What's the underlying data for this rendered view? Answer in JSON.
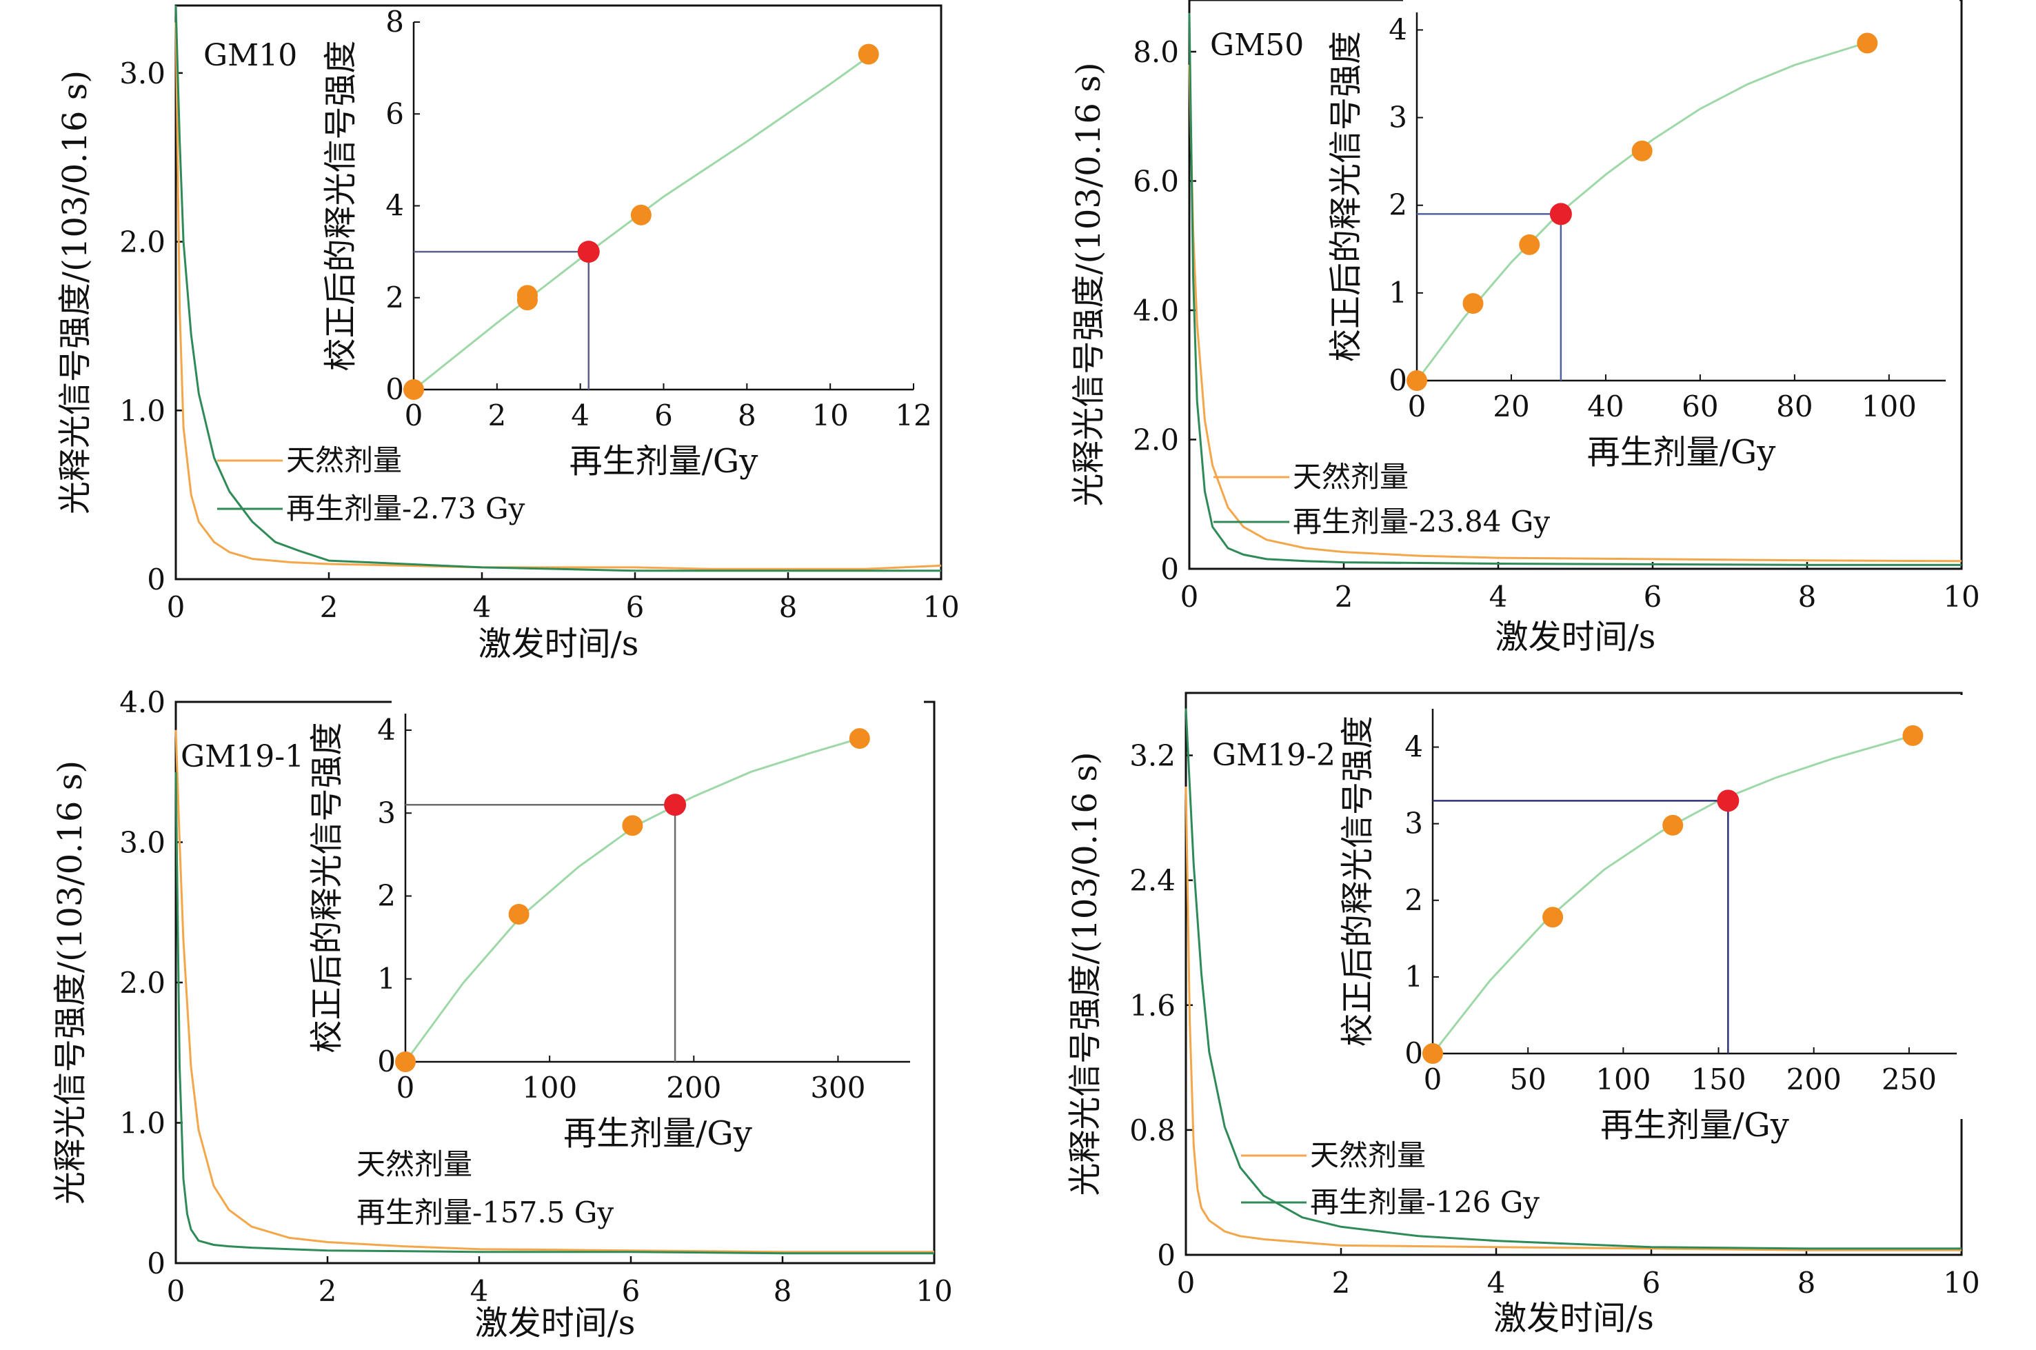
{
  "colors": {
    "natural": "#f4a64a",
    "regen_main": "#2e8b57",
    "fit_curve": "#9fd8a8",
    "point": "#f28c1e",
    "de_point": "#e8202a",
    "guide_gm10": "#5e5e8c",
    "guide_gm50": "#5060a0",
    "guide_gm19_1": "#6b6b6b",
    "guide_gm19_2": "#30307a",
    "axis": "#111111"
  },
  "chart_data": [
    {
      "type": "line",
      "panel": "GM10",
      "label": "GM10",
      "xlabel": "激发时间/s",
      "ylabel": "光释光信号强度/(103/0.16 s)",
      "xlim": [
        0,
        10
      ],
      "ylim": [
        0,
        3.4
      ],
      "xticks": [
        "0",
        "2",
        "4",
        "6",
        "8",
        "10"
      ],
      "yticks": [
        {
          "v": 0,
          "t": "0"
        },
        {
          "v": 1,
          "t": "1.0"
        },
        {
          "v": 2,
          "t": "2.0"
        },
        {
          "v": 3,
          "t": "3.0"
        }
      ],
      "legend": [
        {
          "text": "天然剂量",
          "color": "#f4a64a"
        },
        {
          "text": "再生剂量-2.73 Gy",
          "color": "#2e8b57"
        }
      ],
      "series": [
        {
          "name": "天然剂量",
          "color": "#f4a64a",
          "x": [
            0,
            0.05,
            0.1,
            0.2,
            0.3,
            0.5,
            0.7,
            1.0,
            1.5,
            2.0,
            3.0,
            4.0,
            5.0,
            6.0,
            7.0,
            8.0,
            9.0,
            10.0
          ],
          "y": [
            3.3,
            1.6,
            0.9,
            0.5,
            0.34,
            0.22,
            0.16,
            0.12,
            0.1,
            0.09,
            0.08,
            0.07,
            0.07,
            0.07,
            0.06,
            0.06,
            0.06,
            0.08
          ]
        },
        {
          "name": "再生剂量-2.73 Gy",
          "color": "#2e8b57",
          "x": [
            0,
            0.05,
            0.1,
            0.2,
            0.3,
            0.5,
            0.7,
            1.0,
            1.3,
            1.6,
            2.0,
            2.5,
            3.0,
            4.0,
            5.0,
            6.0,
            8.0,
            10.0
          ],
          "y": [
            3.4,
            2.6,
            2.0,
            1.45,
            1.1,
            0.72,
            0.52,
            0.34,
            0.22,
            0.17,
            0.11,
            0.1,
            0.09,
            0.07,
            0.06,
            0.05,
            0.05,
            0.05
          ]
        }
      ],
      "inset": {
        "xlabel": "再生剂量/Gy",
        "ylabel": "校正后的释光信号强度",
        "xlim": [
          0,
          12
        ],
        "ylim": [
          0,
          8
        ],
        "xticks": [
          "0",
          "2",
          "4",
          "6",
          "8",
          "10",
          "12"
        ],
        "yticks": [
          "0",
          "2",
          "4",
          "6",
          "8"
        ],
        "fit": {
          "x": [
            0,
            2,
            4,
            6,
            8,
            10,
            11
          ],
          "y": [
            0,
            1.45,
            2.85,
            4.2,
            5.4,
            6.65,
            7.3
          ]
        },
        "points": [
          {
            "x": 0,
            "y": 0
          },
          {
            "x": 2.73,
            "y": 1.95
          },
          {
            "x": 2.73,
            "y": 2.05
          },
          {
            "x": 5.46,
            "y": 3.8
          },
          {
            "x": 10.92,
            "y": 7.3
          }
        ],
        "de": {
          "x": 4.2,
          "y": 3.0
        }
      }
    },
    {
      "type": "line",
      "panel": "GM50",
      "label": "GM50",
      "xlabel": "激发时间/s",
      "ylabel": "光释光信号强度/(103/0.16 s)",
      "xlim": [
        0,
        10
      ],
      "ylim": [
        0,
        8.8
      ],
      "xticks": [
        "0",
        "2",
        "4",
        "6",
        "8",
        "10"
      ],
      "yticks": [
        {
          "v": 0,
          "t": "0"
        },
        {
          "v": 2,
          "t": "2.0"
        },
        {
          "v": 4,
          "t": "4.0"
        },
        {
          "v": 6,
          "t": "6.0"
        },
        {
          "v": 8,
          "t": "8.0"
        }
      ],
      "legend": [
        {
          "text": "天然剂量",
          "color": "#f4a64a"
        },
        {
          "text": "再生剂量-23.84 Gy",
          "color": "#2e8b57"
        }
      ],
      "series": [
        {
          "name": "天然剂量",
          "color": "#f4a64a",
          "x": [
            0,
            0.05,
            0.1,
            0.2,
            0.3,
            0.5,
            0.7,
            1.0,
            1.5,
            2.0,
            3.0,
            4.0,
            6.0,
            8.0,
            10.0
          ],
          "y": [
            7.8,
            5.2,
            3.8,
            2.3,
            1.6,
            0.95,
            0.65,
            0.45,
            0.32,
            0.26,
            0.2,
            0.17,
            0.15,
            0.13,
            0.12
          ]
        },
        {
          "name": "再生剂量-23.84 Gy",
          "color": "#2e8b57",
          "x": [
            0,
            0.05,
            0.1,
            0.2,
            0.3,
            0.5,
            0.7,
            1.0,
            1.5,
            2.0,
            4.0,
            6.0,
            8.0,
            10.0
          ],
          "y": [
            8.6,
            4.5,
            2.6,
            1.2,
            0.65,
            0.32,
            0.22,
            0.15,
            0.12,
            0.1,
            0.08,
            0.07,
            0.06,
            0.06
          ]
        }
      ],
      "inset": {
        "xlabel": "再生剂量/Gy",
        "ylabel": "校正后的释光信号强度",
        "xlim": [
          0,
          112
        ],
        "ylim": [
          0,
          4.2
        ],
        "xticks": [
          "0",
          "20",
          "40",
          "60",
          "80",
          "100"
        ],
        "yticks": [
          "0",
          "1",
          "2",
          "3",
          "4"
        ],
        "fit": {
          "x": [
            0,
            10,
            20,
            30,
            40,
            50,
            60,
            70,
            80,
            95
          ],
          "y": [
            0,
            0.72,
            1.35,
            1.9,
            2.35,
            2.75,
            3.1,
            3.38,
            3.6,
            3.85
          ]
        },
        "points": [
          {
            "x": 0,
            "y": 0
          },
          {
            "x": 11.9,
            "y": 0.88
          },
          {
            "x": 23.84,
            "y": 1.55
          },
          {
            "x": 47.7,
            "y": 2.62
          },
          {
            "x": 95.4,
            "y": 3.85
          }
        ],
        "de": {
          "x": 30.5,
          "y": 1.9
        }
      }
    },
    {
      "type": "line",
      "panel": "GM19-1",
      "label": "GM19-1",
      "xlabel": "激发时间/s",
      "ylabel": "光释光信号强度/(103/0.16 s)",
      "xlim": [
        0,
        10
      ],
      "ylim": [
        0,
        4.0
      ],
      "xticks": [
        "0",
        "2",
        "4",
        "6",
        "8",
        "10"
      ],
      "yticks": [
        {
          "v": 0,
          "t": "0"
        },
        {
          "v": 1,
          "t": "1.0"
        },
        {
          "v": 2,
          "t": "2.0"
        },
        {
          "v": 3,
          "t": "3.0"
        },
        {
          "v": 4,
          "t": "4.0"
        }
      ],
      "legend": [
        {
          "text": "天然剂量",
          "color": "#f4a64a"
        },
        {
          "text": "再生剂量-157.5 Gy",
          "color": "#2e8b57"
        }
      ],
      "series": [
        {
          "name": "天然剂量",
          "color": "#f4a64a",
          "x": [
            0,
            0.05,
            0.1,
            0.2,
            0.3,
            0.5,
            0.7,
            1.0,
            1.5,
            2.0,
            3.0,
            4.0,
            6.0,
            8.0,
            10.0
          ],
          "y": [
            3.8,
            3.0,
            2.3,
            1.4,
            0.95,
            0.55,
            0.38,
            0.26,
            0.18,
            0.15,
            0.12,
            0.1,
            0.09,
            0.08,
            0.08
          ]
        },
        {
          "name": "再生剂量-157.5 Gy",
          "color": "#2e8b57",
          "x": [
            0,
            0.05,
            0.1,
            0.15,
            0.2,
            0.3,
            0.5,
            0.7,
            1.0,
            1.5,
            2.0,
            4.0,
            6.0,
            8.0,
            10.0
          ],
          "y": [
            3.5,
            1.4,
            0.6,
            0.35,
            0.24,
            0.16,
            0.13,
            0.12,
            0.11,
            0.1,
            0.09,
            0.08,
            0.08,
            0.07,
            0.07
          ]
        }
      ],
      "inset": {
        "xlabel": "再生剂量/Gy",
        "ylabel": "校正后的释光信号强度",
        "xlim": [
          0,
          350
        ],
        "ylim": [
          0,
          4.2
        ],
        "xticks": [
          "0",
          "100",
          "200",
          "300"
        ],
        "yticks": [
          "0",
          "1",
          "2",
          "3",
          "4"
        ],
        "fit": {
          "x": [
            0,
            40,
            80,
            120,
            160,
            200,
            240,
            280,
            315
          ],
          "y": [
            0,
            0.95,
            1.75,
            2.35,
            2.85,
            3.2,
            3.5,
            3.72,
            3.9
          ]
        },
        "points": [
          {
            "x": 0,
            "y": 0
          },
          {
            "x": 78.7,
            "y": 1.78
          },
          {
            "x": 157.5,
            "y": 2.85
          },
          {
            "x": 315,
            "y": 3.9
          }
        ],
        "de": {
          "x": 187,
          "y": 3.1
        }
      }
    },
    {
      "type": "line",
      "panel": "GM19-2",
      "label": "GM19-2",
      "xlabel": "激发时间/s",
      "ylabel": "光释光信号强度/(103/0.16 s)",
      "xlim": [
        0,
        10
      ],
      "ylim": [
        0,
        3.6
      ],
      "xticks": [
        "0",
        "2",
        "4",
        "6",
        "8",
        "10"
      ],
      "yticks": [
        {
          "v": 0,
          "t": "0"
        },
        {
          "v": 0.8,
          "t": "0.8"
        },
        {
          "v": 1.6,
          "t": "1.6"
        },
        {
          "v": 2.4,
          "t": "2.4"
        },
        {
          "v": 3.2,
          "t": "3.2"
        }
      ],
      "legend": [
        {
          "text": "天然剂量",
          "color": "#f4a64a"
        },
        {
          "text": "再生剂量-126 Gy",
          "color": "#2e8b57"
        }
      ],
      "series": [
        {
          "name": "天然剂量",
          "color": "#f4a64a",
          "x": [
            0,
            0.05,
            0.1,
            0.15,
            0.2,
            0.3,
            0.5,
            0.7,
            1.0,
            1.5,
            2.0,
            4.0,
            6.0,
            8.0,
            10.0
          ],
          "y": [
            3.0,
            1.5,
            0.7,
            0.42,
            0.3,
            0.22,
            0.15,
            0.12,
            0.1,
            0.08,
            0.06,
            0.05,
            0.04,
            0.03,
            0.03
          ]
        },
        {
          "name": "再生剂量-126 Gy",
          "color": "#2e8b57",
          "x": [
            0,
            0.05,
            0.1,
            0.2,
            0.3,
            0.5,
            0.7,
            1.0,
            1.5,
            2.0,
            2.5,
            3.0,
            4.0,
            5.0,
            6.0,
            8.0,
            10.0
          ],
          "y": [
            3.5,
            3.0,
            2.5,
            1.8,
            1.3,
            0.82,
            0.56,
            0.38,
            0.24,
            0.18,
            0.15,
            0.12,
            0.09,
            0.07,
            0.05,
            0.04,
            0.04
          ]
        }
      ],
      "inset": {
        "xlabel": "再生剂量/Gy",
        "ylabel": "校正后的释光信号强度",
        "xlim": [
          0,
          275
        ],
        "ylim": [
          0,
          4.5
        ],
        "xticks": [
          "0",
          "50",
          "100",
          "150",
          "200",
          "250"
        ],
        "yticks": [
          "0",
          "1",
          "2",
          "3",
          "4"
        ],
        "fit": {
          "x": [
            0,
            30,
            60,
            90,
            120,
            150,
            180,
            210,
            252
          ],
          "y": [
            0,
            0.95,
            1.75,
            2.4,
            2.9,
            3.3,
            3.6,
            3.85,
            4.15
          ]
        },
        "points": [
          {
            "x": 0,
            "y": 0
          },
          {
            "x": 63,
            "y": 1.78
          },
          {
            "x": 126,
            "y": 2.98
          },
          {
            "x": 252,
            "y": 4.15
          }
        ],
        "de": {
          "x": 155,
          "y": 3.3
        }
      }
    }
  ]
}
